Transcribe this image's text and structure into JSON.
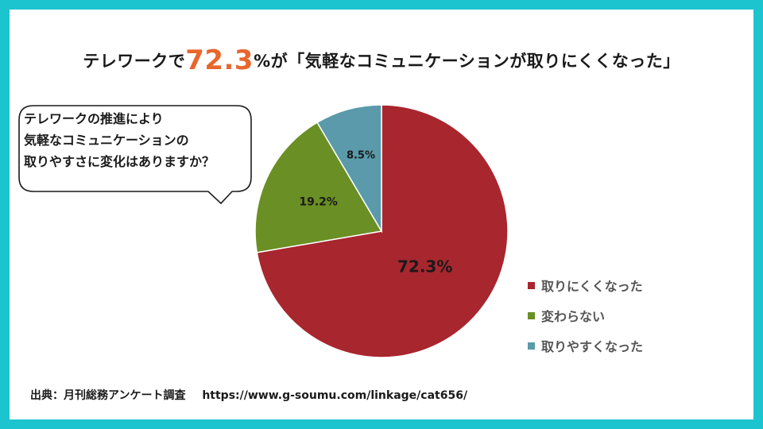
{
  "title": {
    "prefix": "テレワークで",
    "highlight": "72.3",
    "suffix": "%が「気軽なコミュニケーションが取りにくくなった」"
  },
  "question": {
    "lines": [
      "テレワークの推進により",
      "気軽なコミュニケーションの",
      "取りやすさに変化はありますか？"
    ]
  },
  "chart_data": {
    "type": "pie",
    "start_angle_deg": 0,
    "direction": "clockwise",
    "legend_position": "right",
    "slices": [
      {
        "label": "取りにくくなった",
        "value": 72.3,
        "value_label": "72.3%",
        "color": "#a8262e",
        "label_color": "#1a1a1a"
      },
      {
        "label": "変わらない",
        "value": 19.2,
        "value_label": "19.2%",
        "color": "#6a8f24",
        "label_color": "#1a1a1a"
      },
      {
        "label": "取りやすくなった",
        "value": 8.5,
        "value_label": "8.5%",
        "color": "#5a9aab",
        "label_color": "#1a1a1a"
      }
    ]
  },
  "source": {
    "label": "出典：月刊総務アンケート調査",
    "url": "https://www.g-soumu.com/linkage/cat656/"
  }
}
